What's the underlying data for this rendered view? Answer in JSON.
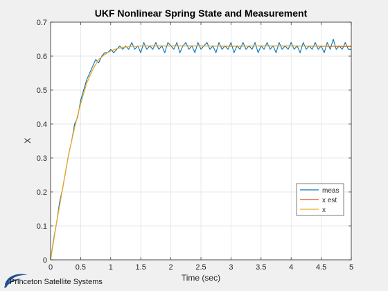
{
  "chart_data": {
    "type": "line",
    "title": "UKF Nonlinear Spring State and Measurement",
    "xlabel": "Time (sec)",
    "ylabel": "X",
    "xlim": [
      0,
      5
    ],
    "ylim": [
      0,
      0.7
    ],
    "xticks": [
      0,
      0.5,
      1,
      1.5,
      2,
      2.5,
      3,
      3.5,
      4,
      4.5,
      5
    ],
    "xtick_labels": [
      "0",
      "0.5",
      "1",
      "1.5",
      "2",
      "2.5",
      "3",
      "3.5",
      "4",
      "4.5",
      "5"
    ],
    "yticks": [
      0,
      0.1,
      0.2,
      0.3,
      0.4,
      0.5,
      0.6,
      0.7
    ],
    "ytick_labels": [
      "0",
      "0.1",
      "0.2",
      "0.3",
      "0.4",
      "0.5",
      "0.6",
      "0.7"
    ],
    "grid": true,
    "legend_position": "bottom-right",
    "series": [
      {
        "name": "meas",
        "color": "#0072BD",
        "x": [
          0,
          0.05,
          0.1,
          0.15,
          0.2,
          0.25,
          0.3,
          0.35,
          0.4,
          0.45,
          0.5,
          0.55,
          0.6,
          0.65,
          0.7,
          0.75,
          0.8,
          0.85,
          0.9,
          0.95,
          1.0,
          1.05,
          1.1,
          1.15,
          1.2,
          1.25,
          1.3,
          1.35,
          1.4,
          1.45,
          1.5,
          1.55,
          1.6,
          1.65,
          1.7,
          1.75,
          1.8,
          1.85,
          1.9,
          1.95,
          2.0,
          2.05,
          2.1,
          2.15,
          2.2,
          2.25,
          2.3,
          2.35,
          2.4,
          2.45,
          2.5,
          2.55,
          2.6,
          2.65,
          2.7,
          2.75,
          2.8,
          2.85,
          2.9,
          2.95,
          3.0,
          3.05,
          3.1,
          3.15,
          3.2,
          3.25,
          3.3,
          3.35,
          3.4,
          3.45,
          3.5,
          3.55,
          3.6,
          3.65,
          3.7,
          3.75,
          3.8,
          3.85,
          3.9,
          3.95,
          4.0,
          4.05,
          4.1,
          4.15,
          4.2,
          4.25,
          4.3,
          4.35,
          4.4,
          4.45,
          4.5,
          4.55,
          4.6,
          4.65,
          4.7,
          4.75,
          4.8,
          4.85,
          4.9,
          4.95,
          5.0
        ],
        "y": [
          0.0,
          0.06,
          0.11,
          0.17,
          0.21,
          0.26,
          0.31,
          0.35,
          0.4,
          0.42,
          0.47,
          0.5,
          0.53,
          0.55,
          0.57,
          0.59,
          0.58,
          0.6,
          0.61,
          0.61,
          0.62,
          0.61,
          0.62,
          0.63,
          0.62,
          0.63,
          0.62,
          0.64,
          0.62,
          0.63,
          0.61,
          0.64,
          0.62,
          0.63,
          0.62,
          0.64,
          0.62,
          0.63,
          0.61,
          0.64,
          0.63,
          0.62,
          0.64,
          0.61,
          0.63,
          0.64,
          0.62,
          0.63,
          0.61,
          0.64,
          0.62,
          0.63,
          0.64,
          0.62,
          0.63,
          0.61,
          0.64,
          0.62,
          0.63,
          0.62,
          0.64,
          0.61,
          0.63,
          0.62,
          0.64,
          0.62,
          0.63,
          0.62,
          0.64,
          0.61,
          0.63,
          0.62,
          0.64,
          0.62,
          0.63,
          0.61,
          0.64,
          0.62,
          0.63,
          0.62,
          0.64,
          0.62,
          0.63,
          0.61,
          0.64,
          0.62,
          0.63,
          0.62,
          0.64,
          0.62,
          0.63,
          0.61,
          0.64,
          0.62,
          0.65,
          0.62,
          0.63,
          0.62,
          0.64,
          0.62,
          0.62
        ]
      },
      {
        "name": "x est",
        "color": "#D95319",
        "x": [
          0,
          0.1,
          0.2,
          0.3,
          0.4,
          0.5,
          0.6,
          0.7,
          0.8,
          0.9,
          1.0,
          1.1,
          1.2,
          1.3,
          1.4,
          1.5,
          2.0,
          2.5,
          3.0,
          3.5,
          4.0,
          4.5,
          5.0
        ],
        "y": [
          0.0,
          0.11,
          0.21,
          0.31,
          0.39,
          0.46,
          0.52,
          0.56,
          0.59,
          0.605,
          0.615,
          0.622,
          0.626,
          0.628,
          0.629,
          0.63,
          0.63,
          0.63,
          0.629,
          0.63,
          0.63,
          0.629,
          0.628
        ]
      },
      {
        "name": "x",
        "color": "#EDB120",
        "x": [
          0,
          0.1,
          0.2,
          0.3,
          0.4,
          0.5,
          0.6,
          0.7,
          0.8,
          0.9,
          1.0,
          1.1,
          1.2,
          1.3,
          1.4,
          1.5,
          2.0,
          2.5,
          3.0,
          3.5,
          4.0,
          4.5,
          5.0
        ],
        "y": [
          0.0,
          0.11,
          0.21,
          0.31,
          0.39,
          0.46,
          0.52,
          0.56,
          0.59,
          0.605,
          0.615,
          0.622,
          0.626,
          0.628,
          0.629,
          0.63,
          0.63,
          0.63,
          0.63,
          0.63,
          0.63,
          0.63,
          0.63
        ]
      }
    ]
  },
  "logo": {
    "text": "Princeton Satellite Systems",
    "swoosh_color": "#1c4f8c"
  }
}
